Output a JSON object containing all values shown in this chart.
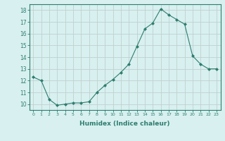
{
  "x": [
    0,
    1,
    2,
    3,
    4,
    5,
    6,
    7,
    8,
    9,
    10,
    11,
    12,
    13,
    14,
    15,
    16,
    17,
    18,
    19,
    20,
    21,
    22,
    23
  ],
  "y": [
    12.3,
    12.0,
    10.4,
    9.9,
    10.0,
    10.1,
    10.1,
    10.2,
    11.0,
    11.6,
    12.1,
    12.7,
    13.4,
    14.9,
    16.4,
    16.9,
    18.1,
    17.6,
    17.2,
    16.8,
    14.1,
    13.4,
    13.0,
    13.0
  ],
  "line_color": "#2e7d6e",
  "marker": "D",
  "marker_size": 2.0,
  "bg_color": "#d8f0f0",
  "grid_color": "#c0d0d0",
  "xlabel": "Humidex (Indice chaleur)",
  "ylabel_ticks": [
    10,
    11,
    12,
    13,
    14,
    15,
    16,
    17,
    18
  ],
  "xlim": [
    -0.5,
    23.5
  ],
  "ylim": [
    9.5,
    18.5
  ],
  "xlabel_color": "#2e7d6e",
  "tick_color": "#2e7d6e",
  "axis_color": "#2e7d6e"
}
